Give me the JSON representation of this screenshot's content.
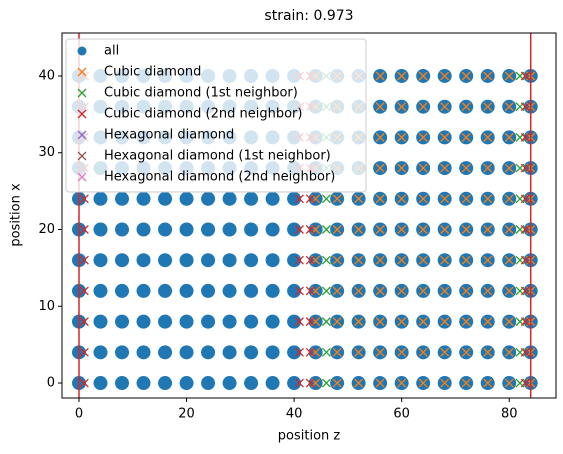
{
  "chart_data": {
    "type": "scatter",
    "title": "strain: 0.973",
    "xlabel": "position z",
    "ylabel": "position x",
    "xlim": [
      -3.16,
      88.7
    ],
    "ylim": [
      -1.95,
      45.6
    ],
    "xticks": [
      0,
      20,
      40,
      60,
      80
    ],
    "yticks": [
      0,
      10,
      20,
      30,
      40
    ],
    "vlines": [
      0,
      84
    ],
    "vline_color": "#d62728",
    "legend": "upper left",
    "series": [
      {
        "name": "all",
        "marker": "o",
        "color": "#1f77b4",
        "x": [
          0,
          4,
          8,
          12,
          16,
          20,
          24,
          28,
          32,
          36,
          40,
          44,
          48,
          52,
          56,
          60,
          64,
          68,
          72,
          76,
          80,
          84,
          0,
          4,
          8,
          12,
          16,
          20,
          24,
          28,
          32,
          36,
          40,
          44,
          48,
          52,
          56,
          60,
          64,
          68,
          72,
          76,
          80,
          84,
          0,
          4,
          8,
          12,
          16,
          20,
          24,
          28,
          32,
          36,
          40,
          44,
          48,
          52,
          56,
          60,
          64,
          68,
          72,
          76,
          80,
          84,
          0,
          4,
          8,
          12,
          16,
          20,
          24,
          28,
          32,
          36,
          40,
          44,
          48,
          52,
          56,
          60,
          64,
          68,
          72,
          76,
          80,
          84,
          0,
          4,
          8,
          12,
          16,
          20,
          24,
          28,
          32,
          36,
          40,
          44,
          48,
          52,
          56,
          60,
          64,
          68,
          72,
          76,
          80,
          84,
          0,
          4,
          8,
          12,
          16,
          20,
          24,
          28,
          32,
          36,
          40,
          44,
          48,
          52,
          56,
          60,
          64,
          68,
          72,
          76,
          80,
          84,
          0,
          4,
          8,
          12,
          16,
          20,
          24,
          28,
          32,
          36,
          40,
          44,
          48,
          52,
          56,
          60,
          64,
          68,
          72,
          76,
          80,
          84,
          0,
          4,
          8,
          12,
          16,
          20,
          24,
          28,
          32,
          36,
          40,
          44,
          48,
          52,
          56,
          60,
          64,
          68,
          72,
          76,
          80,
          84,
          0,
          4,
          8,
          12,
          16,
          20,
          24,
          28,
          32,
          36,
          40,
          44,
          48,
          52,
          56,
          60,
          64,
          68,
          72,
          76,
          80,
          84,
          0,
          4,
          8,
          12,
          16,
          20,
          24,
          28,
          32,
          36,
          40,
          44,
          48,
          52,
          56,
          60,
          64,
          68,
          72,
          76,
          80,
          84,
          0,
          4,
          8,
          12,
          16,
          20,
          24,
          28,
          32,
          36,
          40,
          44,
          48,
          52,
          56,
          60,
          64,
          68,
          72,
          76,
          80,
          84
        ],
        "y": [
          0,
          0,
          0,
          0,
          0,
          0,
          0,
          0,
          0,
          0,
          0,
          0,
          0,
          0,
          0,
          0,
          0,
          0,
          0,
          0,
          0,
          0,
          4,
          4,
          4,
          4,
          4,
          4,
          4,
          4,
          4,
          4,
          4,
          4,
          4,
          4,
          4,
          4,
          4,
          4,
          4,
          4,
          4,
          4,
          8,
          8,
          8,
          8,
          8,
          8,
          8,
          8,
          8,
          8,
          8,
          8,
          8,
          8,
          8,
          8,
          8,
          8,
          8,
          8,
          8,
          8,
          12,
          12,
          12,
          12,
          12,
          12,
          12,
          12,
          12,
          12,
          12,
          12,
          12,
          12,
          12,
          12,
          12,
          12,
          12,
          12,
          12,
          12,
          16,
          16,
          16,
          16,
          16,
          16,
          16,
          16,
          16,
          16,
          16,
          16,
          16,
          16,
          16,
          16,
          16,
          16,
          16,
          16,
          16,
          16,
          20,
          20,
          20,
          20,
          20,
          20,
          20,
          20,
          20,
          20,
          20,
          20,
          20,
          20,
          20,
          20,
          20,
          20,
          20,
          20,
          20,
          20,
          24,
          24,
          24,
          24,
          24,
          24,
          24,
          24,
          24,
          24,
          24,
          24,
          24,
          24,
          24,
          24,
          24,
          24,
          24,
          24,
          24,
          24,
          28,
          28,
          28,
          28,
          28,
          28,
          28,
          28,
          28,
          28,
          28,
          28,
          28,
          28,
          28,
          28,
          28,
          28,
          28,
          28,
          28,
          28,
          32,
          32,
          32,
          32,
          32,
          32,
          32,
          32,
          32,
          32,
          32,
          32,
          32,
          32,
          32,
          32,
          32,
          32,
          32,
          32,
          32,
          32,
          36,
          36,
          36,
          36,
          36,
          36,
          36,
          36,
          36,
          36,
          36,
          36,
          36,
          36,
          36,
          36,
          36,
          36,
          36,
          36,
          36,
          36,
          40,
          40,
          40,
          40,
          40,
          40,
          40,
          40,
          40,
          40,
          40,
          40,
          40,
          40,
          40,
          40,
          40,
          40,
          40,
          40,
          40,
          40
        ]
      },
      {
        "name": "Cubic diamond",
        "marker": "x",
        "color": "#ff7f0e",
        "x": [
          44,
          48,
          52,
          56,
          60,
          64,
          68,
          72,
          76,
          80,
          84,
          44,
          48,
          52,
          56,
          60,
          64,
          68,
          72,
          76,
          80,
          84,
          44,
          48,
          52,
          56,
          60,
          64,
          68,
          72,
          76,
          80,
          84,
          44,
          48,
          52,
          56,
          60,
          64,
          68,
          72,
          76,
          80,
          84,
          44,
          48,
          52,
          56,
          60,
          64,
          68,
          72,
          76,
          80,
          84,
          44,
          48,
          52,
          56,
          60,
          64,
          68,
          72,
          76,
          80,
          84,
          44,
          48,
          52,
          56,
          60,
          64,
          68,
          72,
          76,
          80,
          84,
          44,
          48,
          52,
          56,
          60,
          64,
          68,
          72,
          76,
          80,
          84,
          44,
          48,
          52,
          56,
          60,
          64,
          68,
          72,
          76,
          80,
          84,
          44,
          48,
          52,
          56,
          60,
          64,
          68,
          72,
          76,
          80,
          84,
          44,
          48,
          52,
          56,
          60,
          64,
          68,
          72,
          76,
          80,
          84
        ],
        "y": [
          0,
          0,
          0,
          0,
          0,
          0,
          0,
          0,
          0,
          0,
          0,
          4,
          4,
          4,
          4,
          4,
          4,
          4,
          4,
          4,
          4,
          4,
          8,
          8,
          8,
          8,
          8,
          8,
          8,
          8,
          8,
          8,
          8,
          12,
          12,
          12,
          12,
          12,
          12,
          12,
          12,
          12,
          12,
          12,
          16,
          16,
          16,
          16,
          16,
          16,
          16,
          16,
          16,
          16,
          16,
          20,
          20,
          20,
          20,
          20,
          20,
          20,
          20,
          20,
          20,
          20,
          24,
          24,
          24,
          24,
          24,
          24,
          24,
          24,
          24,
          24,
          24,
          28,
          28,
          28,
          28,
          28,
          28,
          28,
          28,
          28,
          28,
          28,
          32,
          32,
          32,
          32,
          32,
          32,
          32,
          32,
          32,
          32,
          32,
          36,
          36,
          36,
          36,
          36,
          36,
          36,
          36,
          36,
          36,
          36,
          40,
          40,
          40,
          40,
          40,
          40,
          40,
          40,
          40,
          40,
          40
        ]
      },
      {
        "name": "Cubic diamond (1st neighbor)",
        "marker": "x",
        "color": "#2ca02c",
        "x": [
          46,
          82,
          46,
          82,
          46,
          82,
          46,
          82,
          46,
          82,
          46,
          82,
          46,
          82,
          46,
          82,
          46,
          82,
          46,
          82,
          46,
          82
        ],
        "y": [
          0,
          0,
          4,
          4,
          8,
          8,
          12,
          12,
          16,
          16,
          20,
          20,
          24,
          24,
          28,
          28,
          32,
          32,
          36,
          36,
          40,
          40
        ]
      },
      {
        "name": "Cubic diamond (2nd neighbor)",
        "marker": "x",
        "color": "#d62728",
        "x": [
          1,
          41,
          43,
          83,
          1,
          41,
          43,
          83,
          1,
          41,
          43,
          83,
          1,
          41,
          43,
          83,
          1,
          41,
          43,
          83,
          1,
          41,
          43,
          83,
          1,
          41,
          43,
          83,
          1,
          41,
          43,
          83,
          1,
          41,
          43,
          83,
          1,
          41,
          43,
          83,
          1,
          41,
          43,
          83
        ],
        "y": [
          0,
          0,
          0,
          0,
          4,
          4,
          4,
          4,
          8,
          8,
          8,
          8,
          12,
          12,
          12,
          12,
          16,
          16,
          16,
          16,
          20,
          20,
          20,
          20,
          24,
          24,
          24,
          24,
          28,
          28,
          28,
          28,
          32,
          32,
          32,
          32,
          36,
          36,
          36,
          36,
          40,
          40,
          40,
          40
        ]
      },
      {
        "name": "Hexagonal diamond",
        "marker": "x",
        "color": "#9467bd",
        "x": [],
        "y": []
      },
      {
        "name": "Hexagonal diamond (1st neighbor)",
        "marker": "x",
        "color": "#8c564b",
        "x": [],
        "y": []
      },
      {
        "name": "Hexagonal diamond (2nd neighbor)",
        "marker": "x",
        "color": "#e377c2",
        "x": [],
        "y": []
      }
    ]
  }
}
